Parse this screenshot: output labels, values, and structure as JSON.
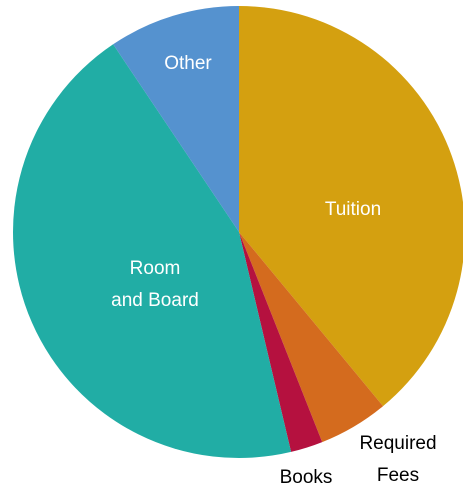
{
  "chart_data": {
    "type": "pie",
    "categories": [
      "Tuition",
      "Required\nFees",
      "Books",
      "Room\nand Board",
      "Other"
    ],
    "values": [
      39,
      5,
      2.3,
      44.3,
      9.4
    ],
    "colors": [
      "#d4a010",
      "#d46b1e",
      "#b5113f",
      "#21ada5",
      "#5592cf"
    ]
  }
}
